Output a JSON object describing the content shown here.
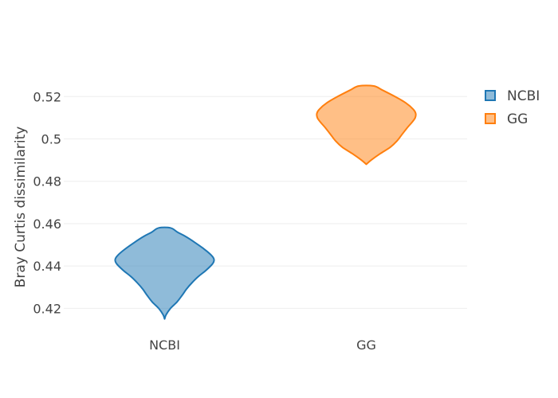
{
  "chart_data": {
    "type": "violin",
    "title": "",
    "xlabel": "",
    "ylabel": "Bray Curtis dissimilarity",
    "categories": [
      "NCBI",
      "GG"
    ],
    "ylim": [
      0.41,
      0.528
    ],
    "yticks": [
      0.42,
      0.44,
      0.46,
      0.48,
      0.5,
      0.52
    ],
    "ytick_labels": [
      "0.42",
      "0.44",
      "0.46",
      "0.48",
      "0.5",
      "0.52"
    ],
    "grid": true,
    "legend_position": "top-right",
    "series": [
      {
        "name": "NCBI",
        "color": "#1f77b4",
        "min": 0.415,
        "max": 0.458,
        "profile": [
          [
            0.415,
            0.0
          ],
          [
            0.417,
            0.03
          ],
          [
            0.42,
            0.12
          ],
          [
            0.423,
            0.25
          ],
          [
            0.426,
            0.35
          ],
          [
            0.429,
            0.44
          ],
          [
            0.432,
            0.55
          ],
          [
            0.435,
            0.68
          ],
          [
            0.438,
            0.84
          ],
          [
            0.441,
            0.97
          ],
          [
            0.443,
            1.0
          ],
          [
            0.445,
            0.95
          ],
          [
            0.448,
            0.8
          ],
          [
            0.451,
            0.62
          ],
          [
            0.454,
            0.42
          ],
          [
            0.456,
            0.26
          ],
          [
            0.458,
            0.12
          ]
        ]
      },
      {
        "name": "GG",
        "color": "#ff7f0e",
        "min": 0.488,
        "max": 0.525,
        "profile": [
          [
            0.488,
            0.0
          ],
          [
            0.49,
            0.1
          ],
          [
            0.493,
            0.28
          ],
          [
            0.496,
            0.48
          ],
          [
            0.499,
            0.62
          ],
          [
            0.502,
            0.72
          ],
          [
            0.505,
            0.82
          ],
          [
            0.508,
            0.93
          ],
          [
            0.51,
            0.99
          ],
          [
            0.512,
            1.0
          ],
          [
            0.514,
            0.95
          ],
          [
            0.517,
            0.8
          ],
          [
            0.52,
            0.58
          ],
          [
            0.523,
            0.33
          ],
          [
            0.525,
            0.15
          ]
        ]
      }
    ]
  }
}
